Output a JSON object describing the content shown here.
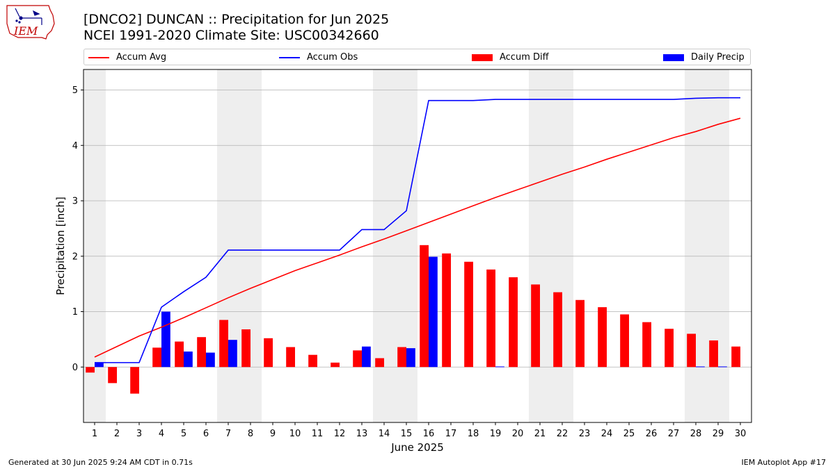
{
  "logo_text": "IEM",
  "title_line1": "[DNCO2] DUNCAN :: Precipitation for Jun 2025",
  "title_line2": "NCEI 1991-2020 Climate Site: USC00342660",
  "footer_left": "Generated at 30 Jun 2025 9:24 AM CDT in 0.71s",
  "footer_right": "IEM Autoplot App #17",
  "colors": {
    "avg": "#ff0000",
    "obs": "#0000ff",
    "diff": "#ff0000",
    "daily": "#0000ff",
    "weekend": "#eeeeee",
    "grid": "#b0b0b0"
  },
  "chart_data": {
    "type": "bar",
    "xlabel": "June 2025",
    "ylabel": "Precipitation [inch]",
    "xlim": [
      0.5,
      30.5
    ],
    "ylim": [
      -1.0,
      5.37
    ],
    "yticks": [
      0,
      1,
      2,
      3,
      4,
      5
    ],
    "grid": "y",
    "legend_position": "top",
    "days": [
      1,
      2,
      3,
      4,
      5,
      6,
      7,
      8,
      9,
      10,
      11,
      12,
      13,
      14,
      15,
      16,
      17,
      18,
      19,
      20,
      21,
      22,
      23,
      24,
      25,
      26,
      27,
      28,
      29,
      30
    ],
    "weekend_days": [
      1,
      7,
      8,
      14,
      15,
      21,
      22,
      28,
      29
    ],
    "series": [
      {
        "name": "Accum Avg",
        "kind": "line",
        "values": [
          0.18,
          0.37,
          0.56,
          0.72,
          0.89,
          1.07,
          1.25,
          1.42,
          1.58,
          1.74,
          1.88,
          2.02,
          2.17,
          2.31,
          2.46,
          2.61,
          2.76,
          2.91,
          3.06,
          3.2,
          3.34,
          3.48,
          3.61,
          3.75,
          3.88,
          4.01,
          4.14,
          4.25,
          4.38,
          4.49
        ]
      },
      {
        "name": "Accum Obs",
        "kind": "line",
        "values": [
          0.08,
          0.08,
          0.08,
          1.08,
          1.36,
          1.62,
          2.11,
          2.11,
          2.11,
          2.11,
          2.11,
          2.11,
          2.48,
          2.48,
          2.82,
          4.81,
          4.81,
          4.81,
          4.83,
          4.83,
          4.83,
          4.83,
          4.83,
          4.83,
          4.83,
          4.83,
          4.83,
          4.85,
          4.86,
          4.86
        ]
      },
      {
        "name": "Accum Diff",
        "kind": "bar",
        "values": [
          -0.1,
          -0.29,
          -0.48,
          0.35,
          0.46,
          0.54,
          0.85,
          0.68,
          0.52,
          0.36,
          0.22,
          0.08,
          0.3,
          0.16,
          0.36,
          2.2,
          2.05,
          1.9,
          1.76,
          1.62,
          1.49,
          1.35,
          1.21,
          1.08,
          0.95,
          0.81,
          0.69,
          0.6,
          0.48,
          0.37
        ]
      },
      {
        "name": "Daily Precip",
        "kind": "bar",
        "values": [
          0.08,
          0,
          0,
          1.0,
          0.28,
          0.26,
          0.49,
          0,
          0,
          0,
          0,
          0,
          0.37,
          0,
          0.34,
          1.99,
          0,
          0,
          0.01,
          0,
          0,
          0,
          0,
          0,
          0,
          0,
          0,
          0.01,
          0.01,
          0
        ]
      }
    ]
  }
}
